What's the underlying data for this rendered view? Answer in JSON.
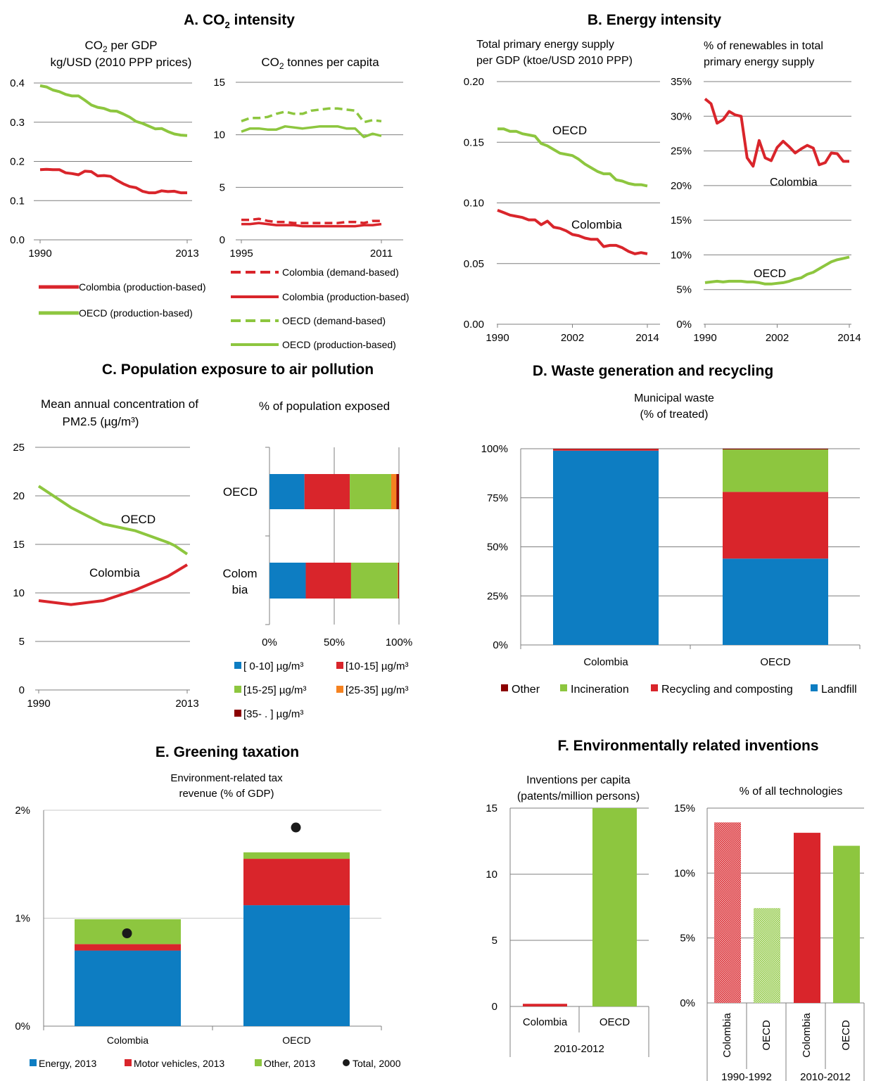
{
  "colors": {
    "colombia": "#d9252b",
    "oecd": "#8dc63f",
    "energy": "#0d7dc2",
    "other_dark": "#8b0000",
    "orange": "#f58220",
    "dot": "#1a1a1a"
  },
  "panelA": {
    "title_pre": "A. CO",
    "title_sub": "2",
    "title_post": " intensity",
    "left": {
      "subtitle1_pre": "CO",
      "subtitle1_sub": "2",
      "subtitle1_post": " per GDP",
      "subtitle2": "kg/USD (2010 PPP prices)",
      "yticks": [
        "0.4",
        "0.3",
        "0.2",
        "0.1",
        "0.0"
      ],
      "xticks": [
        "1990",
        "2013"
      ],
      "legend": [
        "Colombia (production-based)",
        "OECD (production-based)"
      ]
    },
    "right": {
      "subtitle_pre": "CO",
      "subtitle_sub": "2",
      "subtitle_post": " tonnes per capita",
      "yticks": [
        "15",
        "10",
        "5",
        "0"
      ],
      "xticks": [
        "1995",
        "2011"
      ],
      "legend": [
        "Colombia (demand-based)",
        "Colombia (production-based)",
        "OECD (demand-based)",
        "OECD (production-based)"
      ]
    }
  },
  "panelB": {
    "title": "B. Energy intensity",
    "left": {
      "subtitle1": "Total primary energy supply",
      "subtitle2": "per GDP (ktoe/USD 2010 PPP)",
      "yticks": [
        "0.20",
        "0.15",
        "0.10",
        "0.05",
        "0.00"
      ],
      "xticks": [
        "1990",
        "2002",
        "2014"
      ],
      "label_oecd": "OECD",
      "label_col": "Colombia"
    },
    "right": {
      "subtitle1": "% of renewables in total",
      "subtitle2": "primary energy supply",
      "yticks": [
        "35%",
        "30%",
        "25%",
        "20%",
        "15%",
        "10%",
        "5%",
        "0%"
      ],
      "xticks": [
        "1990",
        "2002",
        "2014"
      ],
      "label_col": "Colombia",
      "label_oecd": "OECD"
    }
  },
  "panelC": {
    "title": "C. Population exposure to air pollution",
    "left": {
      "subtitle1": "Mean annual concentration of",
      "subtitle2": "PM2.5 (µg/m³)",
      "yticks": [
        "25",
        "20",
        "15",
        "10",
        "5",
        "0"
      ],
      "xticks": [
        "1990",
        "2013"
      ],
      "label_oecd": "OECD",
      "label_col": "Colombia"
    },
    "right": {
      "subtitle": "% of population exposed",
      "cat1": "OECD",
      "cat2a": "Colom",
      "cat2b": "bia",
      "xticks": [
        "0%",
        "50%",
        "100%"
      ],
      "legend": [
        "[ 0-10] µg/m³",
        "[10-15] µg/m³",
        "[15-25] µg/m³",
        "[25-35] µg/m³",
        "[35- . ] µg/m³"
      ]
    }
  },
  "panelD": {
    "title": "D. Waste generation and recycling",
    "subtitle1": "Municipal waste",
    "subtitle2": "(% of treated)",
    "yticks": [
      "100%",
      "75%",
      "50%",
      "25%",
      "0%"
    ],
    "categories": [
      "Colombia",
      "OECD"
    ],
    "legend": [
      "Other",
      "Incineration",
      "Recycling and composting",
      "Landfill"
    ]
  },
  "panelE": {
    "title": "E. Greening taxation",
    "subtitle1": "Environment-related tax",
    "subtitle2": "revenue (% of GDP)",
    "yticks": [
      "2%",
      "1%",
      "0%"
    ],
    "categories": [
      "Colombia",
      "OECD"
    ],
    "legend": [
      "Energy, 2013",
      "Motor vehicles, 2013",
      "Other, 2013",
      "Total, 2000"
    ]
  },
  "panelF": {
    "title": "F. Environmentally related inventions",
    "left": {
      "subtitle1": "Inventions per capita",
      "subtitle2": "(patents/million persons)",
      "yticks": [
        "15",
        "10",
        "5",
        "0"
      ],
      "categories": [
        "Colombia",
        "OECD"
      ],
      "period": "2010-2012"
    },
    "right": {
      "subtitle": "% of all technologies",
      "yticks": [
        "15%",
        "10%",
        "5%",
        "0%"
      ],
      "categories": [
        "Colombia",
        "OECD",
        "Colombia",
        "OECD"
      ],
      "periods": [
        "1990-1992",
        "2010-2012"
      ]
    }
  },
  "chart_data": [
    {
      "type": "line",
      "panel": "A-left",
      "x": [
        1990,
        1991,
        1992,
        1993,
        1994,
        1995,
        1996,
        1997,
        1998,
        1999,
        2000,
        2001,
        2002,
        2003,
        2004,
        2005,
        2006,
        2007,
        2008,
        2009,
        2010,
        2011,
        2012,
        2013
      ],
      "series": [
        {
          "name": "Colombia (production-based)",
          "values": [
            0.179,
            0.18,
            0.179,
            0.179,
            0.171,
            0.169,
            0.166,
            0.175,
            0.174,
            0.163,
            0.164,
            0.162,
            0.152,
            0.143,
            0.136,
            0.133,
            0.124,
            0.12,
            0.12,
            0.125,
            0.123,
            0.124,
            0.12,
            0.12
          ]
        },
        {
          "name": "OECD (production-based)",
          "values": [
            0.393,
            0.39,
            0.382,
            0.378,
            0.371,
            0.367,
            0.367,
            0.356,
            0.344,
            0.338,
            0.335,
            0.329,
            0.328,
            0.321,
            0.313,
            0.302,
            0.297,
            0.29,
            0.283,
            0.284,
            0.276,
            0.27,
            0.267,
            0.266
          ]
        }
      ],
      "ylim": [
        0,
        0.4
      ]
    },
    {
      "type": "line",
      "panel": "A-right",
      "x": [
        1995,
        1996,
        1997,
        1998,
        1999,
        2000,
        2001,
        2002,
        2003,
        2004,
        2005,
        2006,
        2007,
        2008,
        2009,
        2010,
        2011
      ],
      "series": [
        {
          "name": "Colombia (demand-based)",
          "values": [
            1.9,
            1.9,
            2.0,
            1.8,
            1.7,
            1.7,
            1.6,
            1.6,
            1.6,
            1.6,
            1.6,
            1.6,
            1.7,
            1.7,
            1.6,
            1.8,
            1.8
          ]
        },
        {
          "name": "Colombia (production-based)",
          "values": [
            1.5,
            1.5,
            1.6,
            1.5,
            1.4,
            1.4,
            1.4,
            1.3,
            1.3,
            1.3,
            1.3,
            1.3,
            1.3,
            1.3,
            1.4,
            1.4,
            1.5
          ]
        },
        {
          "name": "OECD (demand-based)",
          "values": [
            11.3,
            11.6,
            11.6,
            11.7,
            12.0,
            12.2,
            12.0,
            12.0,
            12.3,
            12.4,
            12.5,
            12.5,
            12.4,
            12.3,
            11.2,
            11.4,
            11.3
          ]
        },
        {
          "name": "OECD (production-based)",
          "values": [
            10.3,
            10.6,
            10.6,
            10.5,
            10.5,
            10.8,
            10.7,
            10.6,
            10.7,
            10.8,
            10.8,
            10.8,
            10.6,
            10.6,
            9.8,
            10.1,
            9.9
          ]
        }
      ],
      "ylim": [
        0,
        15
      ]
    },
    {
      "type": "line",
      "panel": "B-left",
      "x": [
        1990,
        1991,
        1992,
        1993,
        1994,
        1995,
        1996,
        1997,
        1998,
        1999,
        2000,
        2001,
        2002,
        2003,
        2004,
        2005,
        2006,
        2007,
        2008,
        2009,
        2010,
        2011,
        2012,
        2013,
        2014
      ],
      "series": [
        {
          "name": "OECD",
          "values": [
            0.161,
            0.161,
            0.159,
            0.159,
            0.157,
            0.156,
            0.155,
            0.149,
            0.147,
            0.144,
            0.141,
            0.14,
            0.139,
            0.136,
            0.132,
            0.129,
            0.126,
            0.124,
            0.124,
            0.119,
            0.118,
            0.116,
            0.115,
            0.115,
            0.114
          ]
        },
        {
          "name": "Colombia",
          "values": [
            0.094,
            0.092,
            0.09,
            0.089,
            0.088,
            0.086,
            0.086,
            0.082,
            0.085,
            0.08,
            0.079,
            0.077,
            0.074,
            0.073,
            0.071,
            0.07,
            0.07,
            0.064,
            0.065,
            0.065,
            0.063,
            0.06,
            0.058,
            0.059,
            0.058
          ]
        }
      ],
      "ylim": [
        0,
        0.2
      ]
    },
    {
      "type": "line",
      "panel": "B-right",
      "x": [
        1990,
        1991,
        1992,
        1993,
        1994,
        1995,
        1996,
        1997,
        1998,
        1999,
        2000,
        2001,
        2002,
        2003,
        2004,
        2005,
        2006,
        2007,
        2008,
        2009,
        2010,
        2011,
        2012,
        2013,
        2014
      ],
      "series": [
        {
          "name": "Colombia",
          "values": [
            0.325,
            0.318,
            0.29,
            0.295,
            0.307,
            0.302,
            0.3,
            0.24,
            0.228,
            0.265,
            0.24,
            0.236,
            0.255,
            0.264,
            0.256,
            0.247,
            0.253,
            0.258,
            0.254,
            0.23,
            0.233,
            0.247,
            0.246,
            0.235,
            0.235
          ]
        },
        {
          "name": "OECD",
          "values": [
            0.06,
            0.061,
            0.062,
            0.061,
            0.062,
            0.062,
            0.062,
            0.061,
            0.061,
            0.06,
            0.058,
            0.058,
            0.059,
            0.06,
            0.062,
            0.065,
            0.067,
            0.072,
            0.075,
            0.08,
            0.085,
            0.09,
            0.093,
            0.095,
            0.097
          ]
        }
      ],
      "ylim": [
        0,
        0.35
      ]
    },
    {
      "type": "line",
      "panel": "C-left",
      "x": [
        1990,
        1995,
        2000,
        2005,
        2010,
        2011,
        2013
      ],
      "series": [
        {
          "name": "OECD",
          "values": [
            21,
            18.8,
            17.1,
            16.4,
            15.2,
            14.9,
            14
          ]
        },
        {
          "name": "Colombia",
          "values": [
            9.2,
            8.8,
            9.2,
            10.3,
            11.7,
            12.1,
            12.9
          ]
        }
      ],
      "ylim": [
        0,
        25
      ]
    },
    {
      "type": "bar",
      "panel": "C-right",
      "orientation": "horizontal",
      "stacked": true,
      "categories": [
        "OECD",
        "Colombia"
      ],
      "series": [
        {
          "name": "[ 0-10] µg/m³",
          "values": [
            27,
            28
          ]
        },
        {
          "name": "[10-15] µg/m³",
          "values": [
            35,
            35
          ]
        },
        {
          "name": "[15-25] µg/m³",
          "values": [
            32,
            36
          ]
        },
        {
          "name": "[25-35] µg/m³",
          "values": [
            4,
            0.5
          ]
        },
        {
          "name": "[35- . ] µg/m³",
          "values": [
            2,
            0.5
          ]
        }
      ],
      "xlim": [
        0,
        100
      ]
    },
    {
      "type": "bar",
      "panel": "D",
      "stacked": true,
      "categories": [
        "Colombia",
        "OECD"
      ],
      "series": [
        {
          "name": "Landfill",
          "values": [
            99,
            44
          ]
        },
        {
          "name": "Recycling and composting",
          "values": [
            0.8,
            34
          ]
        },
        {
          "name": "Incineration",
          "values": [
            0,
            21.6
          ]
        },
        {
          "name": "Other",
          "values": [
            0.2,
            0.4
          ]
        }
      ],
      "ylim": [
        0,
        100
      ]
    },
    {
      "type": "bar",
      "panel": "E",
      "stacked": true,
      "categories": [
        "Colombia",
        "OECD"
      ],
      "series": [
        {
          "name": "Energy, 2013",
          "values": [
            0.7,
            1.12
          ]
        },
        {
          "name": "Motor vehicles, 2013",
          "values": [
            0.06,
            0.43
          ]
        },
        {
          "name": "Other, 2013",
          "values": [
            0.23,
            0.06
          ]
        }
      ],
      "points": {
        "name": "Total, 2000",
        "values": [
          0.86,
          1.84
        ]
      },
      "ylim": [
        0,
        2
      ]
    },
    {
      "type": "bar",
      "panel": "F-left",
      "categories": [
        "Colombia",
        "OECD"
      ],
      "values": [
        0.2,
        15
      ],
      "ylim": [
        0,
        15
      ]
    },
    {
      "type": "bar",
      "panel": "F-right",
      "categories": [
        "Colombia",
        "OECD",
        "Colombia",
        "OECD"
      ],
      "periods": [
        "1990-1992",
        "1990-1992",
        "2010-2012",
        "2010-2012"
      ],
      "values": [
        13.9,
        7.3,
        13.1,
        12.1
      ],
      "ylim": [
        0,
        15
      ]
    }
  ]
}
